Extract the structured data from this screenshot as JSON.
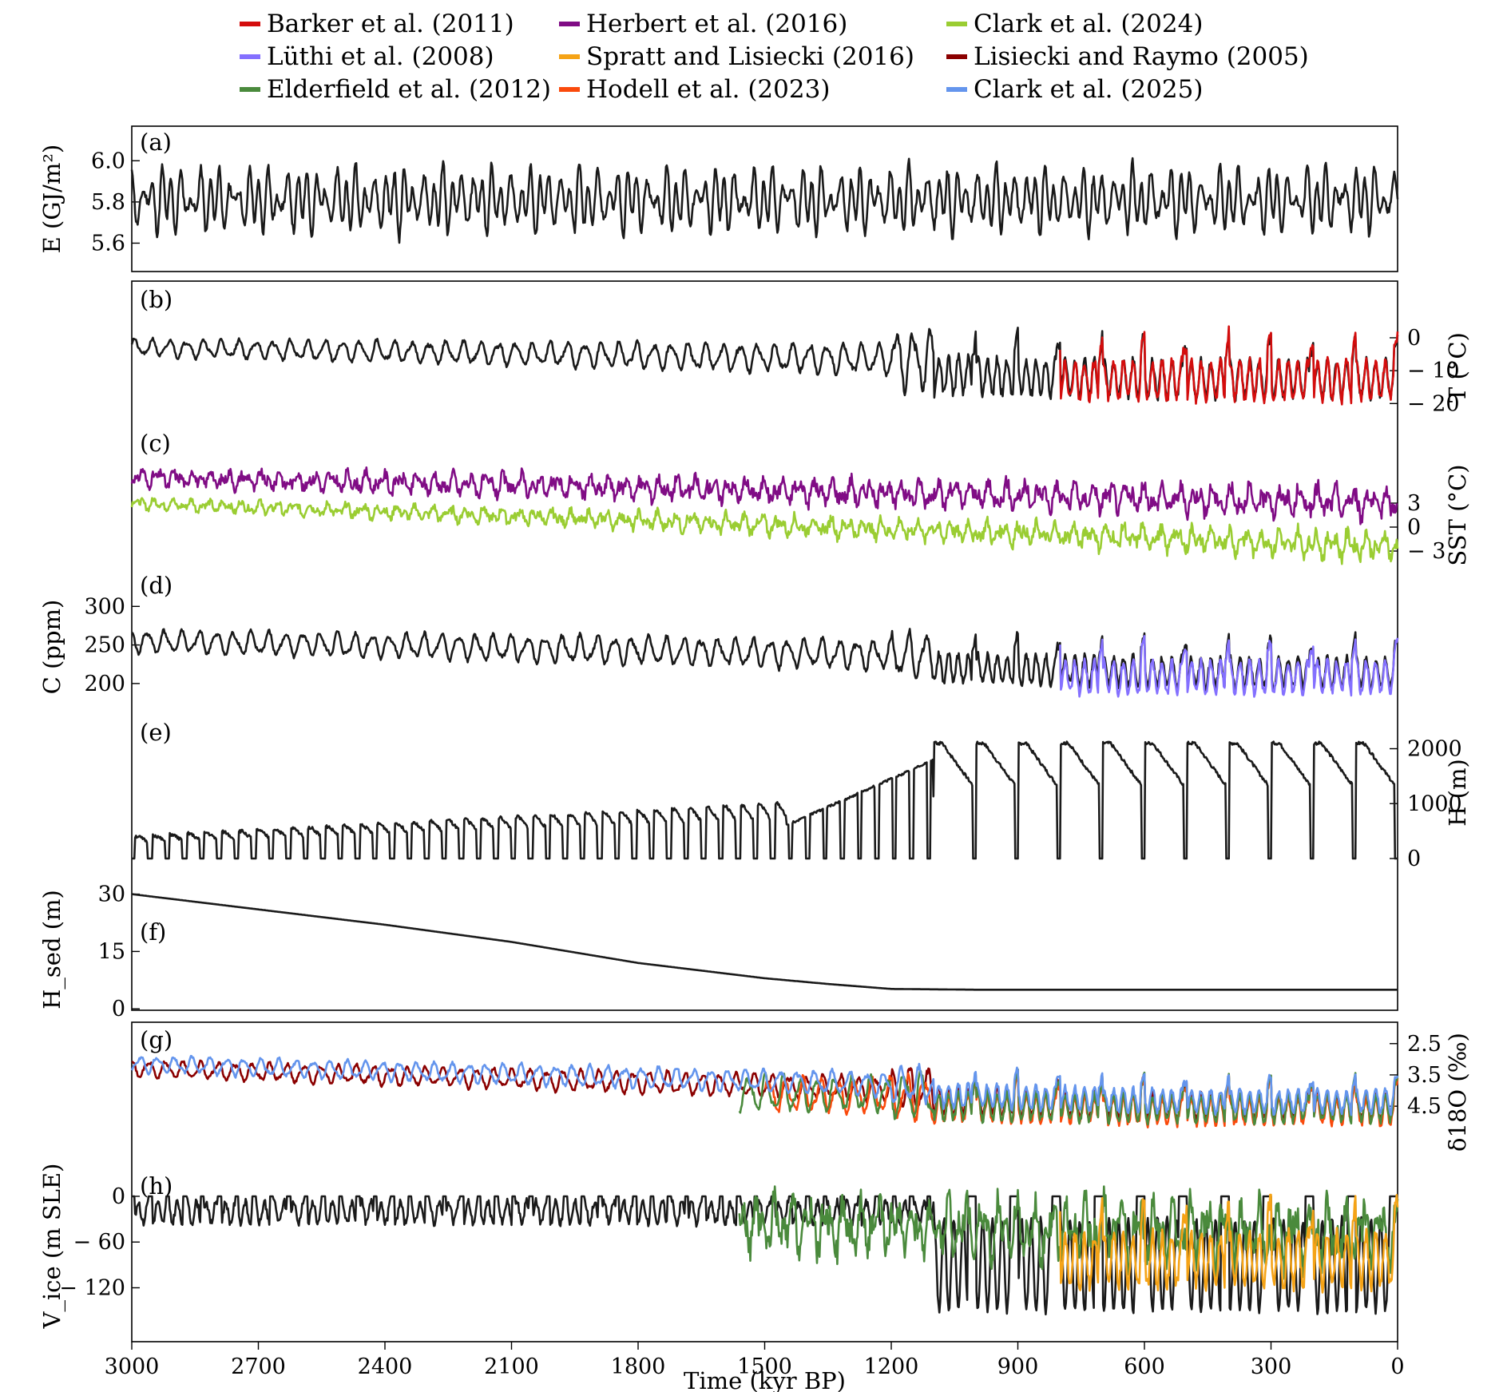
{
  "legend": [
    {
      "label": "Barker et al. (2011)",
      "color": "#d40d0d"
    },
    {
      "label": "Lüthi et al. (2008)",
      "color": "#8470ff"
    },
    {
      "label": "Elderfield et al. (2012)",
      "color": "#4a8a3c"
    },
    {
      "label": "Herbert et al. (2016)",
      "color": "#800c85"
    },
    {
      "label": "Spratt and Lisiecki (2016)",
      "color": "#f5a316"
    },
    {
      "label": "Hodell et al. (2023)",
      "color": "#fa4a0c"
    },
    {
      "label": "Clark et al. (2024)",
      "color": "#9acd32"
    },
    {
      "label": "Lisiecki and Raymo (2005)",
      "color": "#8b0000"
    },
    {
      "label": "Clark et al. (2025)",
      "color": "#6495ed"
    }
  ],
  "model_color": "#1a1a1a",
  "xaxis": {
    "label": "Time (kyr BP)",
    "range": [
      3000,
      0
    ],
    "ticks": [
      3000,
      2700,
      2400,
      2100,
      1800,
      1500,
      1200,
      900,
      600,
      300,
      0
    ]
  },
  "chart_data": [
    {
      "type": "line",
      "panel": "(a)",
      "ylabel": "E (GJ/m²)",
      "y_side": "left",
      "ylim": [
        5.47,
        6.16
      ],
      "yticks": [
        "5.6",
        "5.8",
        "6.0"
      ],
      "ytick_values": [
        5.6,
        5.8,
        6.0
      ],
      "series": [
        {
          "color_key": "model",
          "x_range": [
            3000,
            0
          ],
          "mean": 5.81,
          "amp": 0.16,
          "style": "insolation",
          "seed": 11
        }
      ]
    },
    {
      "type": "line",
      "panel": "(b)",
      "ylabel": "T (°C)",
      "y_side": "right",
      "ylim": [
        -26,
        8
      ],
      "yticks": [
        "0",
        "− 10",
        "− 20"
      ],
      "ytick_values": [
        0,
        -10,
        -20
      ],
      "series": [
        {
          "color_key": "model",
          "x_range": [
            3000,
            0
          ],
          "style": "glacial",
          "base_old": -3,
          "base_new": -8,
          "amp_old": 4,
          "amp_new": 14,
          "seed": 21
        },
        {
          "name": "Barker et al. (2011)",
          "color": "#d40d0d",
          "x_range": [
            800,
            0
          ],
          "style": "glacial",
          "base_old": -8,
          "base_new": -8,
          "amp_old": 14,
          "amp_new": 15,
          "seed": 22
        }
      ]
    },
    {
      "type": "line",
      "panel": "(c)",
      "ylabel": "SST (°C)",
      "y_side": "right",
      "ylim": [
        -6,
        9
      ],
      "yticks": [
        "3",
        "0",
        "− 3"
      ],
      "ytick_values": [
        3,
        0,
        -3
      ],
      "series": [
        {
          "name": "Herbert et al. (2016)",
          "color": "#800c85",
          "x_range": [
            3000,
            0
          ],
          "style": "noise",
          "base_old": 6.2,
          "base_new": 3.0,
          "amp_old": 1.3,
          "amp_new": 2.3,
          "seed": 31
        },
        {
          "name": "Clark et al. (2024)",
          "color": "#9acd32",
          "x_range": [
            3000,
            0
          ],
          "style": "noise",
          "base_old": 3.0,
          "base_new": -2.4,
          "amp_old": 0.8,
          "amp_new": 2.0,
          "seed": 32
        }
      ]
    },
    {
      "type": "line",
      "panel": "(d)",
      "ylabel": "C (ppm)",
      "y_side": "left",
      "ylim": [
        175,
        320
      ],
      "yticks": [
        "200",
        "250",
        "300"
      ],
      "ytick_values": [
        200,
        250,
        300
      ],
      "series": [
        {
          "color_key": "model",
          "x_range": [
            3000,
            0
          ],
          "style": "glacial",
          "base_old": 255,
          "base_new": 230,
          "amp_old": 22,
          "amp_new": 48,
          "seed": 41
        },
        {
          "name": "Lüthi et al. (2008)",
          "color": "#8470ff",
          "x_range": [
            800,
            0
          ],
          "style": "glacial",
          "base_old": 225,
          "base_new": 225,
          "amp_old": 50,
          "amp_new": 52,
          "seed": 42
        }
      ]
    },
    {
      "type": "line",
      "panel": "(e)",
      "ylabel": "H (m)",
      "y_side": "right",
      "ylim": [
        0,
        2400
      ],
      "yticks": [
        "0",
        "1000",
        "2000"
      ],
      "ytick_values": [
        0,
        1000,
        2000
      ],
      "series": [
        {
          "color_key": "model",
          "x_range": [
            3000,
            0
          ],
          "style": "icesheet",
          "seed": 51
        }
      ]
    },
    {
      "type": "line",
      "panel": "(f)",
      "ylabel": "H_sed (m)",
      "y_side": "left",
      "ylim": [
        -1,
        32
      ],
      "yticks": [
        "0",
        "15",
        "30"
      ],
      "ytick_values": [
        0,
        15,
        30
      ],
      "series": [
        {
          "color_key": "model",
          "x_range": [
            3000,
            0
          ],
          "style": "sediment",
          "points": [
            [
              3000,
              30
            ],
            [
              2700,
              26
            ],
            [
              2400,
              22
            ],
            [
              2100,
              17.5
            ],
            [
              1800,
              12
            ],
            [
              1500,
              8
            ],
            [
              1350,
              6.5
            ],
            [
              1200,
              5.2
            ],
            [
              1000,
              5.0
            ],
            [
              0,
              5.0
            ]
          ]
        }
      ]
    },
    {
      "type": "line",
      "panel": "(g)",
      "ylabel": "δ18O (‰)",
      "y_side": "right",
      "ylim": [
        5.9,
        2.2
      ],
      "yticks": [
        "2.5",
        "3.5",
        "4.5"
      ],
      "ytick_values": [
        2.5,
        3.5,
        4.5
      ],
      "series": [
        {
          "name": "Lisiecki and Raymo (2005)",
          "color": "#8b0000",
          "x_range": [
            3000,
            0
          ],
          "style": "d18o",
          "base_old": 3.3,
          "base_new": 4.2,
          "amp_old": 0.45,
          "amp_new": 1.1,
          "seed": 71
        },
        {
          "name": "Hodell et al. (2023)",
          "color": "#fa4a0c",
          "x_range": [
            1500,
            0
          ],
          "style": "d18o",
          "base_old": 3.9,
          "base_new": 4.3,
          "amp_old": 0.8,
          "amp_new": 1.2,
          "seed": 72
        },
        {
          "name": "Elderfield et al. (2012)",
          "color": "#4a8a3c",
          "x_range": [
            1560,
            0
          ],
          "style": "d18o",
          "base_old": 3.95,
          "base_new": 4.2,
          "amp_old": 0.85,
          "amp_new": 1.2,
          "seed": 73
        },
        {
          "name": "Clark et al. (2025)",
          "color": "#6495ed",
          "x_range": [
            3000,
            0
          ],
          "style": "d18o",
          "base_old": 3.15,
          "base_new": 4.05,
          "amp_old": 0.45,
          "amp_new": 1.0,
          "seed": 74
        }
      ]
    },
    {
      "type": "line",
      "panel": "(h)",
      "ylabel": "V_ice (m SLE)",
      "y_side": "left",
      "ylim": [
        -175,
        45
      ],
      "yticks": [
        "0",
        "− 60",
        "− 120"
      ],
      "ytick_values": [
        0,
        -60,
        -120
      ],
      "series": [
        {
          "color_key": "model",
          "x_range": [
            3000,
            0
          ],
          "style": "vice",
          "seed": 81
        },
        {
          "name": "Elderfield et al. (2012)",
          "color": "#4a8a3c",
          "x_range": [
            1560,
            0
          ],
          "style": "noise",
          "base_old": -25,
          "base_new": -50,
          "amp_old": 30,
          "amp_new": 50,
          "seed": 82
        },
        {
          "name": "Spratt and Lisiecki (2016)",
          "color": "#f5a316",
          "x_range": [
            800,
            0
          ],
          "style": "glacial",
          "base_old": -55,
          "base_new": -55,
          "amp_old": 55,
          "amp_new": 60,
          "invert": true,
          "seed": 83
        }
      ]
    }
  ]
}
